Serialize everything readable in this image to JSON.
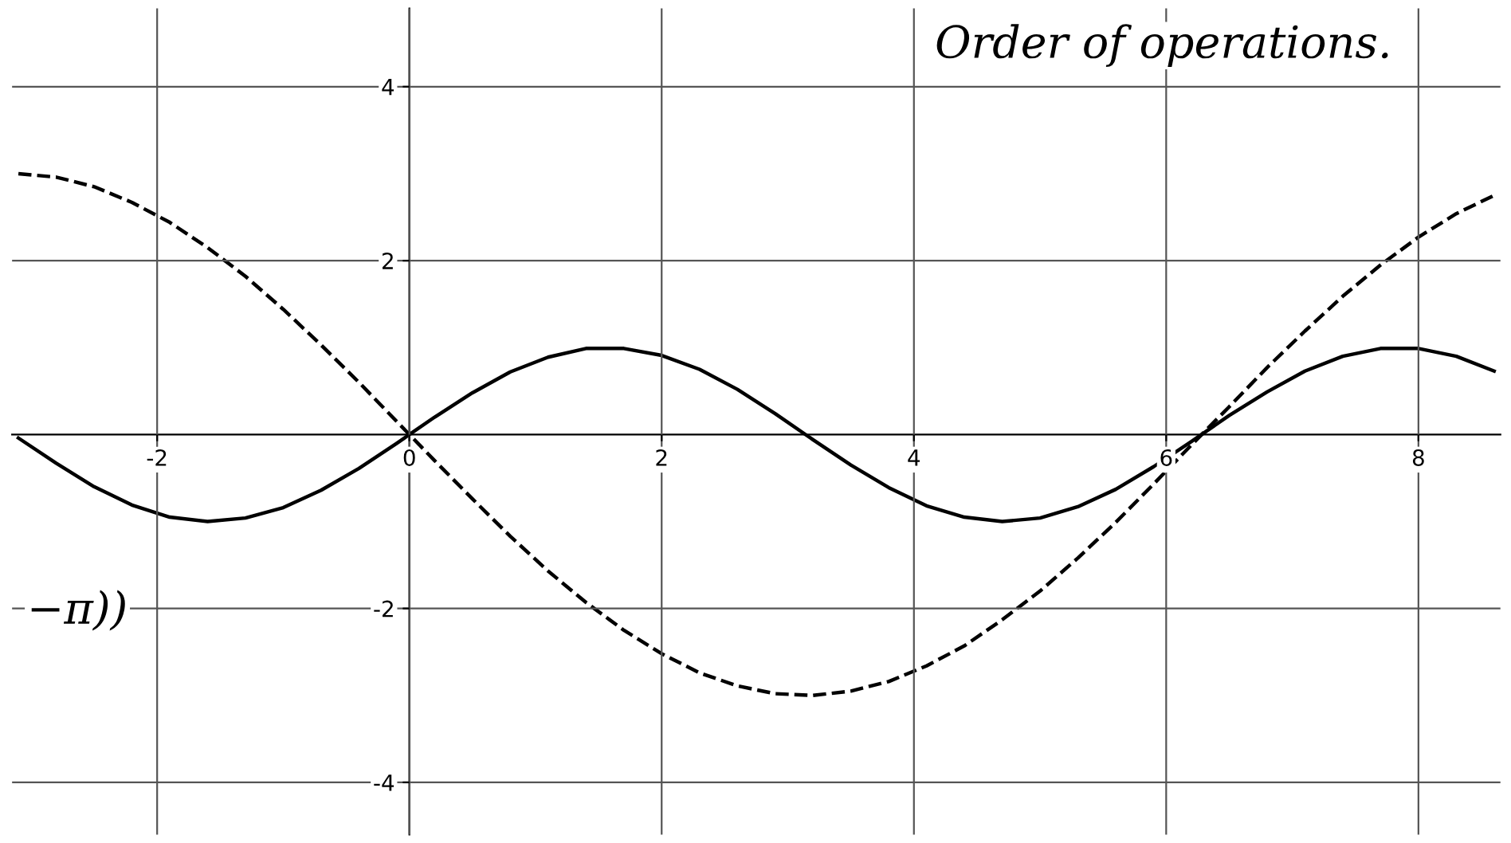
{
  "chart_data": {
    "type": "line",
    "grid": true,
    "xlim": [
      -3.15,
      8.65
    ],
    "ylim": [
      -4.6,
      4.9
    ],
    "xticks": [
      -2,
      0,
      2,
      4,
      6,
      8
    ],
    "yticks": [
      -4,
      -2,
      2,
      4
    ],
    "annotations": [
      "Order of operations.",
      "−π))"
    ],
    "x": [
      -3.1,
      -2.8,
      -2.5,
      -2.2,
      -1.9,
      -1.6,
      -1.3,
      -1.0,
      -0.7,
      -0.4,
      -0.1,
      0.2,
      0.5,
      0.8,
      1.1,
      1.4,
      1.7,
      2.0,
      2.3,
      2.6,
      2.9,
      3.2,
      3.5,
      3.8,
      4.1,
      4.4,
      4.7,
      5.0,
      5.3,
      5.6,
      5.9,
      6.2,
      6.5,
      6.8,
      7.1,
      7.4,
      7.7,
      8.0,
      8.3,
      8.6
    ],
    "series": [
      {
        "color": "#000000",
        "line_style": "solid",
        "values": [
          -0.04,
          -0.33,
          -0.6,
          -0.81,
          -0.95,
          -1.0,
          -0.96,
          -0.84,
          -0.64,
          -0.39,
          -0.1,
          0.2,
          0.48,
          0.72,
          0.89,
          0.99,
          0.99,
          0.91,
          0.75,
          0.52,
          0.24,
          -0.06,
          -0.35,
          -0.61,
          -0.82,
          -0.95,
          -1.0,
          -0.96,
          -0.83,
          -0.63,
          -0.37,
          -0.08,
          0.22,
          0.49,
          0.73,
          0.9,
          0.99,
          0.99,
          0.9,
          0.73
        ]
      },
      {
        "color": "#000000",
        "line_style": "dashed",
        "values": [
          3.0,
          2.96,
          2.85,
          2.67,
          2.44,
          2.15,
          1.82,
          1.44,
          1.03,
          0.6,
          0.15,
          -0.3,
          -0.74,
          -1.17,
          -1.57,
          -1.93,
          -2.25,
          -2.52,
          -2.74,
          -2.89,
          -2.98,
          -3.0,
          -2.95,
          -2.84,
          -2.66,
          -2.43,
          -2.13,
          -1.8,
          -1.42,
          -1.01,
          -0.57,
          -0.12,
          0.32,
          0.77,
          1.19,
          1.59,
          1.95,
          2.27,
          2.54,
          2.75
        ]
      }
    ]
  }
}
